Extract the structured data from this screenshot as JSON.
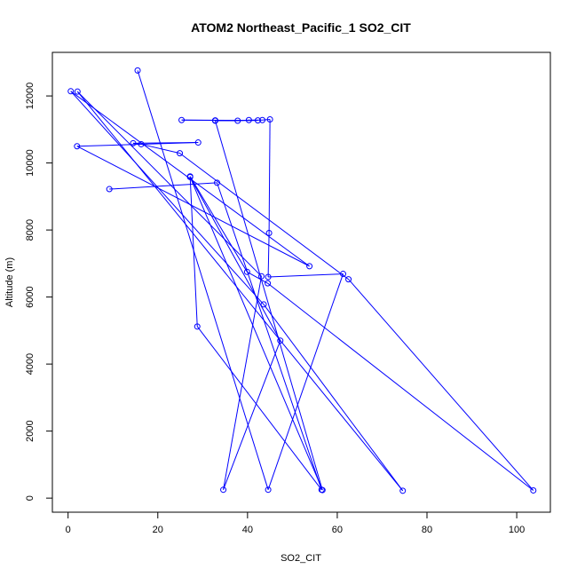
{
  "chart_data": {
    "type": "line",
    "title": "ATOM2 Northeast_Pacific_1 SO2_CIT",
    "xlabel": "SO2_CIT",
    "ylabel": "Altitude (m)",
    "xlim": [
      -3.5,
      107.5
    ],
    "ylim": [
      -420,
      13300
    ],
    "x_ticks": [
      0,
      20,
      40,
      60,
      80,
      100
    ],
    "y_ticks": [
      0,
      2000,
      4000,
      6000,
      8000,
      10000,
      12000
    ],
    "x_tick_labels": [
      "0",
      "20",
      "40",
      "60",
      "80",
      "100"
    ],
    "y_tick_labels": [
      "0",
      "2000",
      "4000",
      "6000",
      "8000",
      "10000",
      "12000"
    ],
    "grid": false,
    "colors": {
      "series": "#0000ff",
      "axis": "#000000"
    },
    "series": [
      {
        "points": [
          {
            "x": 15.5,
            "y": 12760
          },
          {
            "x": 44.6,
            "y": 250
          },
          {
            "x": 61.3,
            "y": 6690
          },
          {
            "x": 44.6,
            "y": 6600
          },
          {
            "x": 44.8,
            "y": 7910
          },
          {
            "x": 45.0,
            "y": 11300
          },
          {
            "x": 43.3,
            "y": 11280
          },
          {
            "x": 40.3,
            "y": 11280
          },
          {
            "x": 37.8,
            "y": 11260
          },
          {
            "x": 32.8,
            "y": 11270
          },
          {
            "x": 25.3,
            "y": 11280
          },
          {
            "x": 42.3,
            "y": 11270
          },
          {
            "x": 32.8,
            "y": 11260
          },
          {
            "x": 56.7,
            "y": 240
          },
          {
            "x": 27.2,
            "y": 9580
          },
          {
            "x": 47.3,
            "y": 4700
          },
          {
            "x": 34.6,
            "y": 250
          },
          {
            "x": 43.1,
            "y": 6620
          },
          {
            "x": 2.1,
            "y": 12130
          },
          {
            "x": 74.6,
            "y": 220
          },
          {
            "x": 43.6,
            "y": 5780
          },
          {
            "x": 0.6,
            "y": 12140
          },
          {
            "x": 53.8,
            "y": 6920
          },
          {
            "x": 2.0,
            "y": 10500
          },
          {
            "x": 29.0,
            "y": 10610
          },
          {
            "x": 14.5,
            "y": 10590
          },
          {
            "x": 16.3,
            "y": 10560
          },
          {
            "x": 24.9,
            "y": 10290
          },
          {
            "x": 62.5,
            "y": 6530
          },
          {
            "x": 103.7,
            "y": 230
          },
          {
            "x": 44.5,
            "y": 6410
          },
          {
            "x": 39.9,
            "y": 6750
          },
          {
            "x": 27.2,
            "y": 9600
          },
          {
            "x": 28.8,
            "y": 5120
          },
          {
            "x": 56.5,
            "y": 250
          },
          {
            "x": 33.2,
            "y": 9410
          },
          {
            "x": 9.2,
            "y": 9220
          }
        ]
      }
    ]
  }
}
